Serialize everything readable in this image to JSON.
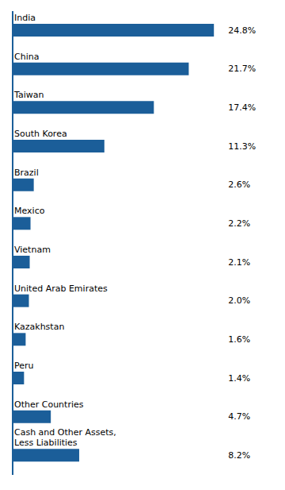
{
  "chart_data": {
    "type": "bar",
    "orientation": "horizontal",
    "categories": [
      "India",
      "China",
      "Taiwan",
      "South Korea",
      "Brazil",
      "Mexico",
      "Vietnam",
      "United Arab Emirates",
      "Kazakhstan",
      "Peru",
      "Other Countries",
      "Cash and Other Assets,\nLess Liabilities"
    ],
    "values": [
      24.8,
      21.7,
      17.4,
      11.3,
      2.6,
      2.2,
      2.1,
      2.0,
      1.6,
      1.4,
      4.7,
      8.2
    ],
    "value_labels": [
      "24.8%",
      "21.7%",
      "17.4%",
      "11.3%",
      "2.6%",
      "2.2%",
      "2.1%",
      "2.0%",
      "1.6%",
      "1.4%",
      "4.7%",
      "8.2%"
    ],
    "color": "#1B5E99",
    "xlim": [
      0,
      32
    ],
    "tick_labels": false,
    "data_labels": true
  }
}
